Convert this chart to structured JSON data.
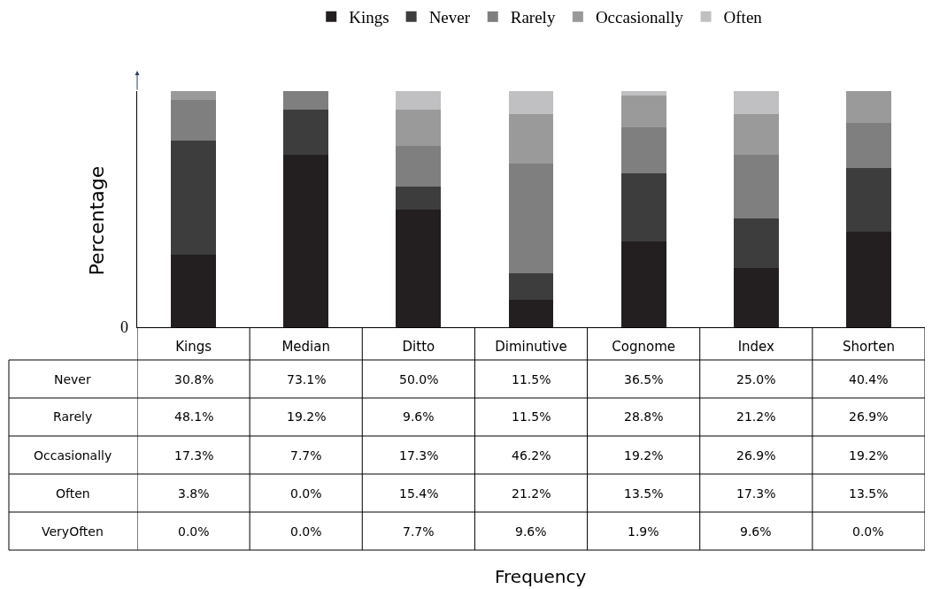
{
  "chart_data": {
    "type": "bar",
    "stacked": true,
    "ylabel": "Percentage",
    "categories": [
      "Kings",
      "Median",
      "Ditto",
      "Diminutive",
      "Cognome",
      "Index",
      "Shorten"
    ],
    "ylim": [
      0,
      100
    ],
    "legend": "top",
    "data_labels": true,
    "annotations": [
      "Never",
      "Rarely",
      "Occasionally",
      "Often",
      "VeryOften",
      "0",
      "Frequency"
    ],
    "series": [
      {
        "name": "Kings",
        "color": "#231f20",
        "values": [
          30.8,
          73.1,
          50.0,
          11.5,
          36.5,
          25.0,
          40.4
        ],
        "value_labels": [
          "30.8%",
          "73.1%",
          "50.0%",
          "11.5%",
          "36.5%",
          "25.0%",
          "40.4%"
        ]
      },
      {
        "name": "Never",
        "color": "#3d3d3d",
        "values": [
          48.1,
          19.2,
          9.6,
          11.5,
          28.8,
          21.2,
          26.9
        ],
        "value_labels": [
          "48.1%",
          "19.2%",
          "9.6%",
          "11.5%",
          "28.8%",
          "21.2%",
          "26.9%"
        ]
      },
      {
        "name": "Rarely",
        "color": "#7f7f7f",
        "values": [
          17.3,
          7.7,
          17.3,
          46.2,
          19.2,
          26.9,
          19.2
        ],
        "value_labels": [
          "17.3%",
          "7.7%",
          "17.3%",
          "46.2%",
          "19.2%",
          "26.9%",
          "19.2%"
        ]
      },
      {
        "name": "Occasionally",
        "color": "#9a9a9a",
        "values": [
          3.8,
          0.0,
          15.4,
          21.2,
          13.5,
          17.3,
          13.5
        ],
        "value_labels": [
          "3.8%",
          "0.0%",
          "15.4%",
          "21.2%",
          "13.5%",
          "17.3%",
          "13.5%"
        ]
      },
      {
        "name": "Often",
        "color": "#c0c0c2",
        "values": [
          0.0,
          0.0,
          7.7,
          9.6,
          1.9,
          9.6,
          0.0
        ],
        "value_labels": [
          "0.0%",
          "0.0%",
          "7.7%",
          "9.6%",
          "1.9%",
          "9.6%",
          "0.0%"
        ]
      }
    ]
  }
}
